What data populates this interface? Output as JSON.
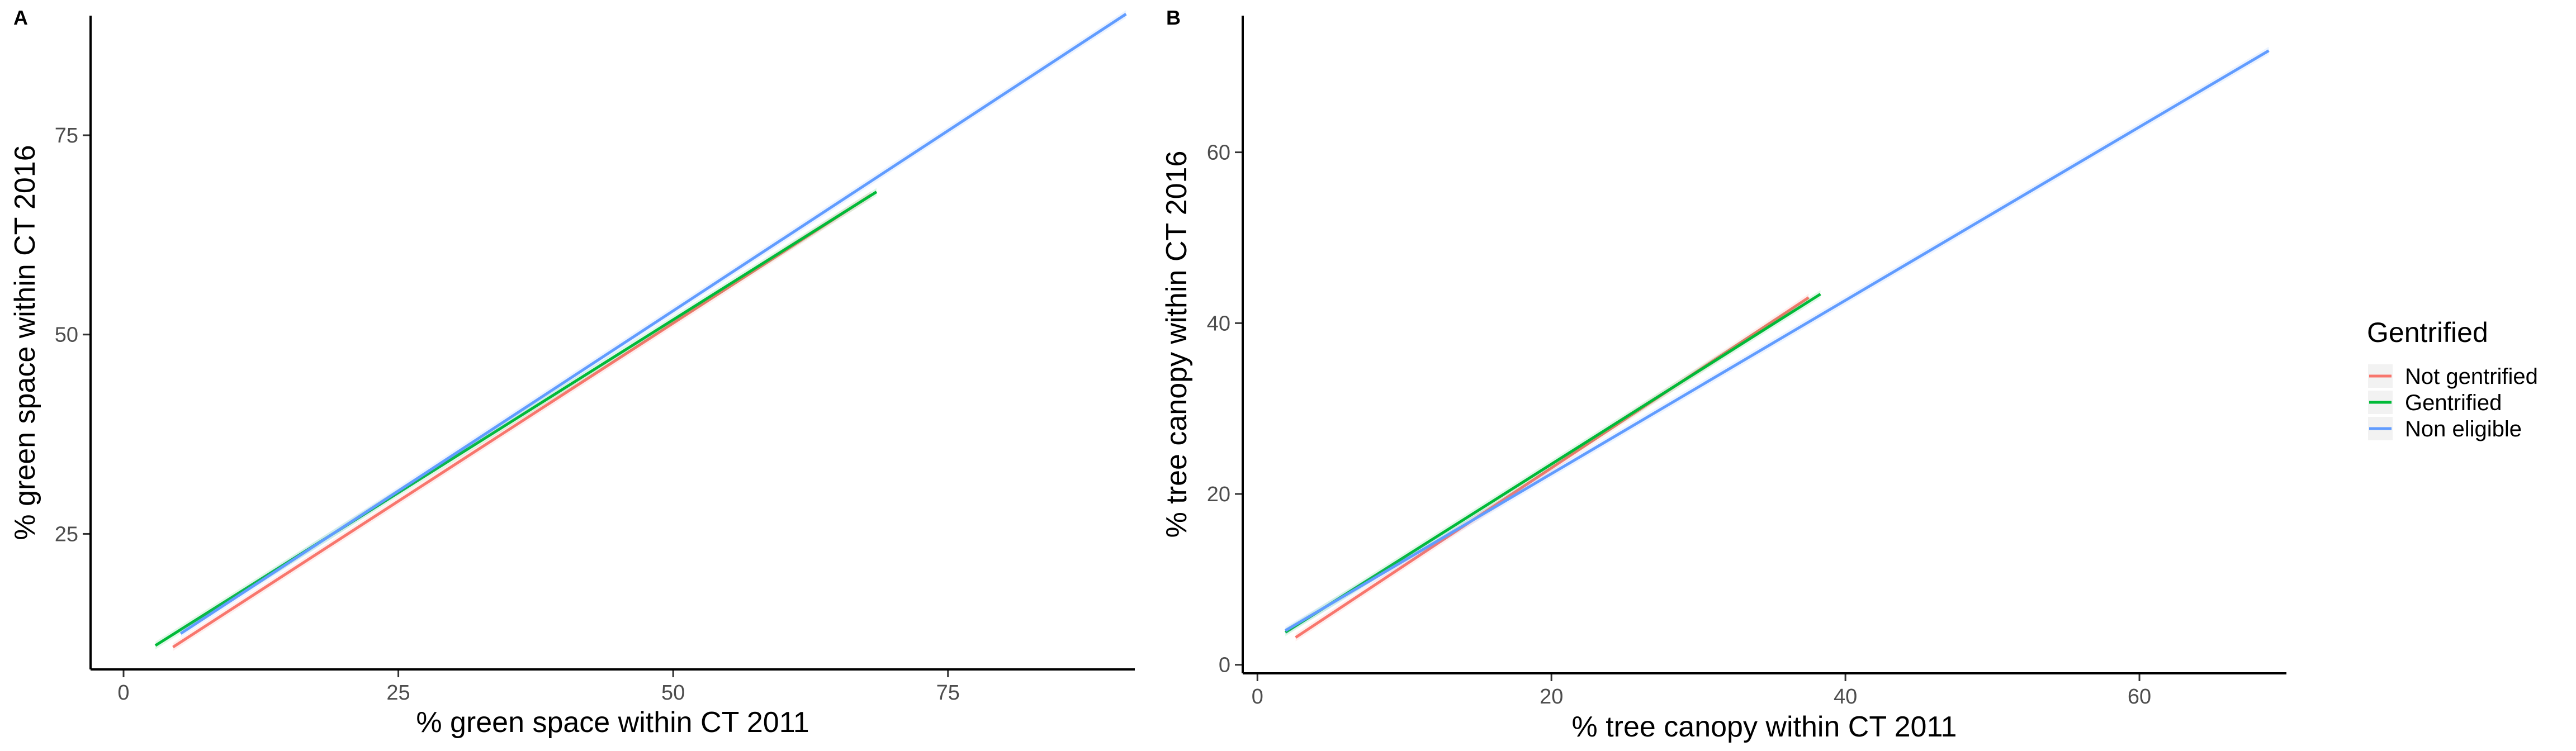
{
  "chart_data": [
    {
      "panel": "A",
      "type": "line",
      "xlabel": "% green space within CT 2011",
      "ylabel": "% green space within CT 2016",
      "xlim": [
        -3,
        92
      ],
      "ylim": [
        8,
        90
      ],
      "xticks": [
        0,
        25,
        50,
        75
      ],
      "yticks": [
        25,
        50,
        75
      ],
      "grid": false,
      "series": [
        {
          "name": "Not gentrified",
          "color": "#F8766D",
          "x": [
            4.5,
            68
          ],
          "y": [
            10.8,
            67.5
          ]
        },
        {
          "name": "Gentrified",
          "color": "#00BA38",
          "x": [
            2.9,
            68.5
          ],
          "y": [
            11.0,
            67.9
          ]
        },
        {
          "name": "Non eligible",
          "color": "#619CFF",
          "x": [
            5.2,
            91.2
          ],
          "y": [
            12.5,
            90.2
          ]
        }
      ]
    },
    {
      "panel": "B",
      "type": "line",
      "xlabel": "% tree canopy within CT 2011",
      "ylabel": "% tree canopy within CT 2016",
      "xlim": [
        -1,
        70
      ],
      "ylim": [
        -1,
        76
      ],
      "xticks": [
        0,
        20,
        40,
        60
      ],
      "yticks": [
        0,
        20,
        40,
        60
      ],
      "grid": false,
      "series": [
        {
          "name": "Not gentrified",
          "color": "#F8766D",
          "x": [
            2.6,
            37.5
          ],
          "y": [
            3.2,
            43.0
          ]
        },
        {
          "name": "Gentrified",
          "color": "#00BA38",
          "x": [
            1.9,
            38.3
          ],
          "y": [
            3.8,
            43.4
          ]
        },
        {
          "name": "Non eligible",
          "color": "#619CFF",
          "x": [
            1.9,
            68.8
          ],
          "y": [
            4.0,
            71.9
          ]
        }
      ]
    }
  ],
  "legend": {
    "title": "Gentrified",
    "items": [
      {
        "label": "Not gentrified",
        "color": "#F8766D"
      },
      {
        "label": "Gentrified",
        "color": "#00BA38"
      },
      {
        "label": "Non eligible",
        "color": "#619CFF"
      }
    ]
  }
}
